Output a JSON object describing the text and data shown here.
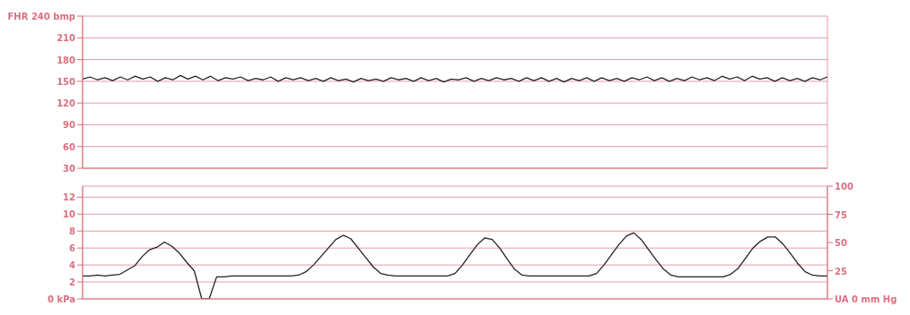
{
  "chart_data": [
    {
      "type": "line",
      "categories": [
        null,
        null,
        null,
        null,
        null,
        null,
        null,
        null,
        null,
        null,
        null,
        null,
        null,
        null,
        null,
        null,
        null,
        null,
        null,
        null,
        null,
        null,
        null,
        null,
        null,
        null,
        null,
        null,
        null,
        null,
        null,
        null,
        null,
        null,
        null,
        null,
        null,
        null,
        null,
        null,
        null,
        null,
        null,
        null,
        null,
        null,
        null,
        null,
        null,
        null,
        null,
        null,
        null,
        null,
        null,
        null,
        null,
        null,
        null,
        null,
        null,
        null,
        null,
        null,
        null,
        null,
        null,
        null,
        null,
        null,
        null,
        null,
        null,
        null,
        null,
        null,
        null,
        null,
        null,
        null,
        null,
        null,
        null,
        null,
        null,
        null,
        null,
        null,
        null,
        null,
        null,
        null,
        null,
        null,
        null,
        null,
        null,
        null,
        null,
        null
      ],
      "series": [
        {
          "color": "#222222",
          "values": [
            153,
            156,
            152,
            155,
            151,
            156,
            152,
            157,
            153,
            156,
            150,
            155,
            152,
            158,
            153,
            157,
            152,
            157,
            151,
            155,
            153,
            156,
            151,
            154,
            152,
            156,
            150,
            155,
            152,
            155,
            151,
            154,
            150,
            155,
            151,
            153,
            149,
            154,
            151,
            153,
            150,
            155,
            152,
            154,
            150,
            155,
            151,
            154,
            149,
            153,
            152,
            155,
            150,
            154,
            151,
            155,
            152,
            154,
            150,
            155,
            151,
            155,
            150,
            154,
            149,
            154,
            151,
            155,
            150,
            155,
            151,
            154,
            150,
            155,
            152,
            156,
            151,
            155,
            150,
            154,
            151,
            156,
            152,
            155,
            151,
            157,
            153,
            156,
            151,
            157,
            153,
            155,
            150,
            155,
            151,
            154,
            150,
            155,
            152,
            156
          ]
        }
      ],
      "ylim": [
        30,
        240
      ],
      "yticks": [
        {
          "value": 240,
          "label": "FHR 240 bmp"
        },
        210,
        180,
        150,
        120,
        90,
        60,
        30
      ],
      "grid": true,
      "line_style": "solid"
    },
    {
      "type": "line",
      "categories": [
        null,
        null,
        null,
        null,
        null,
        null,
        null,
        null,
        null,
        null,
        null,
        null,
        null,
        null,
        null,
        null,
        null,
        null,
        null,
        null,
        null,
        null,
        null,
        null,
        null,
        null,
        null,
        null,
        null,
        null,
        null,
        null,
        null,
        null,
        null,
        null,
        null,
        null,
        null,
        null,
        null,
        null,
        null,
        null,
        null,
        null,
        null,
        null,
        null,
        null,
        null,
        null,
        null,
        null,
        null,
        null,
        null,
        null,
        null,
        null,
        null,
        null,
        null,
        null,
        null,
        null,
        null,
        null,
        null,
        null,
        null,
        null,
        null,
        null,
        null,
        null,
        null,
        null,
        null,
        null,
        null,
        null,
        null,
        null,
        null,
        null,
        null,
        null,
        null,
        null,
        null,
        null,
        null,
        null,
        null,
        null,
        null,
        null,
        null,
        null,
        null
      ],
      "series": [
        {
          "color": "#222222",
          "values": [
            2.7,
            2.7,
            2.8,
            2.7,
            2.8,
            2.9,
            3.4,
            3.9,
            5.0,
            5.8,
            6.1,
            6.7,
            6.2,
            5.4,
            4.3,
            3.3,
            0,
            0,
            2.6,
            2.6,
            2.7,
            2.7,
            2.7,
            2.7,
            2.7,
            2.7,
            2.7,
            2.7,
            2.7,
            2.8,
            3.2,
            4.0,
            5.0,
            6.0,
            7.0,
            7.5,
            7.1,
            6.0,
            4.9,
            3.8,
            3.0,
            2.8,
            2.7,
            2.7,
            2.7,
            2.7,
            2.7,
            2.7,
            2.7,
            2.7,
            3.0,
            4.0,
            5.2,
            6.4,
            7.2,
            7.0,
            6.0,
            4.7,
            3.5,
            2.8,
            2.7,
            2.7,
            2.7,
            2.7,
            2.7,
            2.7,
            2.7,
            2.7,
            2.7,
            3.0,
            4.0,
            5.2,
            6.4,
            7.4,
            7.8,
            7.0,
            5.8,
            4.6,
            3.5,
            2.8,
            2.6,
            2.6,
            2.6,
            2.6,
            2.6,
            2.6,
            2.6,
            2.9,
            3.6,
            4.8,
            6.0,
            6.8,
            7.3,
            7.3,
            6.5,
            5.4,
            4.2,
            3.2,
            2.8,
            2.7,
            2.7
          ]
        }
      ],
      "ylim": [
        0,
        13.3
      ],
      "yticks": [
        {
          "value": 0,
          "label": "0 kPa"
        },
        2,
        4,
        6,
        8,
        10,
        12
      ],
      "y2lim": [
        0,
        100
      ],
      "y2ticks": [
        {
          "value": 0,
          "label": "UA 0 mm Hg"
        },
        25,
        50,
        75,
        100
      ],
      "grid": true,
      "line_style": "solid"
    }
  ]
}
